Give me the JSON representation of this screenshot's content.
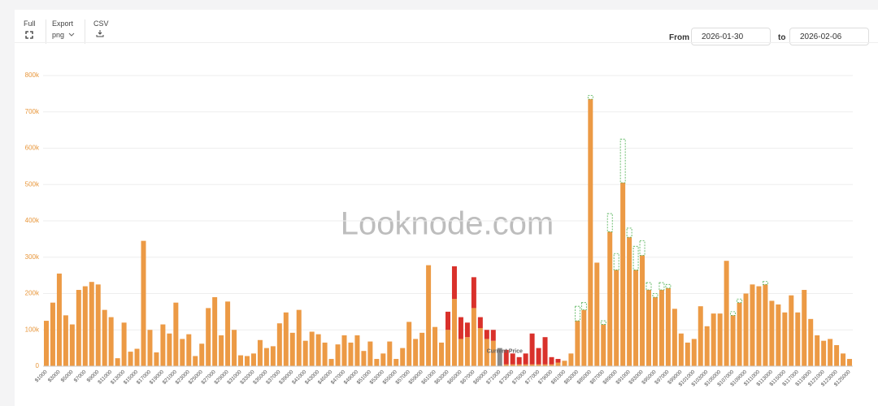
{
  "toolbar": {
    "full": "Full",
    "export": "Export",
    "format": "png",
    "csv": "CSV",
    "from": "From",
    "from_date": "2026-01-30",
    "to": "to",
    "to_date": "2026-02-06"
  },
  "chart_data": {
    "type": "bar",
    "watermark": "Looknode.com",
    "annotation": "Current Price",
    "categories": [
      "$1000",
      null,
      "$3000",
      null,
      "$5000",
      null,
      "$7000",
      null,
      "$9000",
      null,
      "$11000",
      null,
      "$13000",
      null,
      "$15000",
      null,
      "$17000",
      null,
      "$19000",
      null,
      "$21000",
      null,
      "$23000",
      null,
      "$25000",
      null,
      "$27000",
      null,
      "$29000",
      null,
      "$31000",
      null,
      "$33000",
      null,
      "$35000",
      null,
      "$37000",
      null,
      "$39000",
      null,
      "$41000",
      null,
      "$43000",
      null,
      "$45000",
      null,
      "$47000",
      null,
      "$49000",
      null,
      "$51000",
      null,
      "$53000",
      null,
      "$55000",
      null,
      "$57000",
      null,
      "$59000",
      null,
      "$61000",
      null,
      "$63000",
      null,
      "$65000",
      null,
      "$67000",
      null,
      "$69000",
      null,
      "$71000",
      null,
      "$73000",
      null,
      "$75000",
      null,
      "$77000",
      null,
      "$79000",
      null,
      "$81000",
      null,
      "$83000",
      null,
      "$85000",
      null,
      "$87000",
      null,
      "$89000",
      null,
      "$91000",
      null,
      "$93000",
      null,
      "$95000",
      null,
      "$97000",
      null,
      "$99000",
      null,
      "$101000",
      null,
      "$103000",
      null,
      "$105000",
      null,
      "$107000",
      null,
      "$109000",
      null,
      "$111000",
      null,
      "$113000",
      null,
      "$115000",
      null,
      "$117000",
      null,
      "$119000",
      null,
      "$121000",
      null,
      "$123000",
      null,
      "$125000"
    ],
    "series": [
      {
        "color": "#ec9a45",
        "values": [
          125000,
          175000,
          255000,
          140000,
          115000,
          210000,
          220000,
          232000,
          225000,
          155000,
          135000,
          22000,
          120000,
          40000,
          48000,
          345000,
          100000,
          38000,
          115000,
          90000,
          175000,
          75000,
          88000,
          28000,
          62000,
          160000,
          190000,
          85000,
          178000,
          100000,
          30000,
          28000,
          35000,
          72000,
          50000,
          55000,
          118000,
          148000,
          92000,
          155000,
          70000,
          95000,
          88000,
          65000,
          20000,
          60000,
          85000,
          65000,
          85000,
          42000,
          68000,
          20000,
          35000,
          68000,
          20000,
          50000,
          122000,
          75000,
          92000,
          278000,
          108000,
          65000,
          100000,
          185000,
          75000,
          80000,
          160000,
          105000,
          75000,
          70000,
          null,
          5000,
          5000,
          5000,
          5000,
          5000,
          5000,
          5000,
          5000,
          10000,
          15000,
          35000,
          125000,
          155000,
          735000,
          285000,
          115000,
          370000,
          265000,
          505000,
          355000,
          265000,
          305000,
          210000,
          190000,
          210000,
          215000,
          158000,
          90000,
          65000,
          75000,
          165000,
          110000,
          145000,
          145000,
          290000,
          140000,
          175000,
          200000,
          225000,
          220000,
          225000,
          180000,
          170000,
          148000,
          195000,
          148000,
          210000,
          130000,
          85000,
          70000,
          75000,
          58000,
          35000,
          20000
        ]
      },
      {
        "color": "#d9312b",
        "values": [
          null,
          null,
          null,
          null,
          null,
          null,
          null,
          null,
          null,
          null,
          null,
          null,
          null,
          null,
          null,
          null,
          null,
          null,
          null,
          null,
          null,
          null,
          null,
          null,
          null,
          null,
          null,
          null,
          null,
          null,
          null,
          null,
          null,
          null,
          null,
          null,
          null,
          null,
          null,
          null,
          null,
          null,
          null,
          null,
          null,
          null,
          null,
          null,
          null,
          null,
          null,
          null,
          null,
          null,
          null,
          null,
          null,
          null,
          null,
          null,
          null,
          null,
          50000,
          90000,
          60000,
          40000,
          85000,
          30000,
          25000,
          30000,
          null,
          40000,
          30000,
          20000,
          30000,
          85000,
          45000,
          75000,
          20000,
          10000,
          null,
          null,
          null,
          null,
          null,
          null,
          null,
          null,
          null,
          null,
          null,
          null,
          null,
          null,
          null,
          null,
          null,
          null,
          null,
          null,
          null,
          null,
          null,
          null,
          null,
          null,
          null,
          null,
          null,
          null,
          null,
          null,
          null,
          null,
          null,
          null,
          null,
          null,
          null,
          null,
          null,
          null,
          null,
          null,
          null
        ]
      },
      {
        "color": "#4caf50",
        "dashed": true,
        "values": [
          null,
          null,
          null,
          null,
          null,
          null,
          null,
          null,
          null,
          null,
          null,
          null,
          null,
          null,
          null,
          null,
          null,
          null,
          null,
          null,
          null,
          null,
          null,
          null,
          null,
          null,
          null,
          null,
          null,
          null,
          null,
          null,
          null,
          null,
          null,
          null,
          null,
          null,
          null,
          null,
          null,
          null,
          null,
          null,
          null,
          null,
          null,
          null,
          null,
          null,
          null,
          null,
          null,
          null,
          null,
          null,
          null,
          null,
          null,
          null,
          null,
          null,
          null,
          null,
          null,
          null,
          null,
          null,
          null,
          null,
          null,
          null,
          null,
          null,
          null,
          null,
          null,
          null,
          null,
          null,
          null,
          null,
          40000,
          20000,
          10000,
          null,
          10000,
          50000,
          45000,
          120000,
          25000,
          65000,
          40000,
          20000,
          10000,
          20000,
          10000,
          null,
          null,
          null,
          null,
          null,
          null,
          null,
          null,
          null,
          10000,
          10000,
          null,
          null,
          null,
          8000,
          null,
          null,
          null,
          null,
          null,
          null,
          null,
          null,
          null,
          null,
          null,
          null,
          null
        ]
      },
      {
        "color": "#8a8a8a",
        "values": [
          null,
          null,
          null,
          null,
          null,
          null,
          null,
          null,
          null,
          null,
          null,
          null,
          null,
          null,
          null,
          null,
          null,
          null,
          null,
          null,
          null,
          null,
          null,
          null,
          null,
          null,
          null,
          null,
          null,
          null,
          null,
          null,
          null,
          null,
          null,
          null,
          null,
          null,
          null,
          null,
          null,
          null,
          null,
          null,
          null,
          null,
          null,
          null,
          null,
          null,
          null,
          null,
          null,
          null,
          null,
          null,
          null,
          null,
          null,
          null,
          null,
          null,
          null,
          null,
          null,
          null,
          null,
          null,
          null,
          null,
          50000,
          null,
          null,
          null,
          null,
          null,
          null,
          null,
          null,
          null,
          null,
          null,
          null,
          null,
          null,
          null,
          null,
          null,
          null,
          null,
          null,
          null,
          null,
          null,
          null,
          null,
          null,
          null,
          null,
          null,
          null,
          null,
          null,
          null,
          null,
          null,
          null,
          null,
          null,
          null,
          null,
          null,
          null,
          null,
          null,
          null,
          null,
          null,
          null,
          null,
          null,
          null,
          null,
          null,
          null
        ]
      }
    ],
    "ylim": [
      0,
      800000
    ],
    "yticks": [
      0,
      {
        "value": 100000,
        "label": "100k"
      },
      {
        "value": 200000,
        "label": "200k"
      },
      {
        "value": 300000,
        "label": "300k"
      },
      {
        "value": 400000,
        "label": "400k"
      },
      {
        "value": 500000,
        "label": "500k"
      },
      {
        "value": 600000,
        "label": "600k"
      },
      {
        "value": 700000,
        "label": "700k"
      },
      {
        "value": 800000,
        "label": "800k"
      }
    ],
    "grid": true,
    "tick_color": "#e8963a"
  }
}
